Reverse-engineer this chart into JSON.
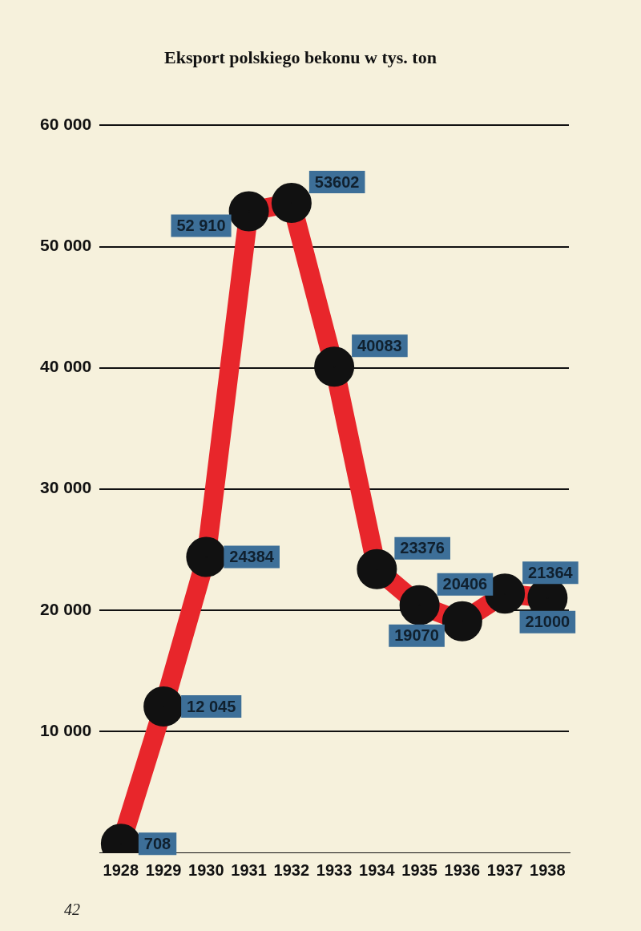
{
  "chart_data": {
    "type": "line",
    "title": "Eksport polskiego bekonu w tys. ton",
    "categories": [
      "1928",
      "1929",
      "1930",
      "1931",
      "1932",
      "1933",
      "1934",
      "1935",
      "1936",
      "1937",
      "1938"
    ],
    "series": [
      {
        "color": "#e8262b",
        "values": [
          708,
          12045,
          24384,
          52910,
          53602,
          40083,
          23376,
          20406,
          19070,
          21364,
          21000
        ],
        "value_labels": [
          "708",
          "12 045",
          "24384",
          "52 910",
          "53602",
          "40083",
          "23376",
          "20406",
          "19070",
          "21364",
          "21000"
        ]
      }
    ],
    "ylim": [
      0,
      60000
    ],
    "yticks": [
      {
        "value": 10000,
        "label": "10 000"
      },
      {
        "value": 20000,
        "label": "20 000"
      },
      {
        "value": 30000,
        "label": "30 000"
      },
      {
        "value": 40000,
        "label": "40 000"
      },
      {
        "value": 50000,
        "label": "50 000"
      },
      {
        "value": 60000,
        "label": "60 000"
      }
    ],
    "grid": "y",
    "marker": "circle",
    "legend": false,
    "annotations": [
      "42"
    ]
  }
}
